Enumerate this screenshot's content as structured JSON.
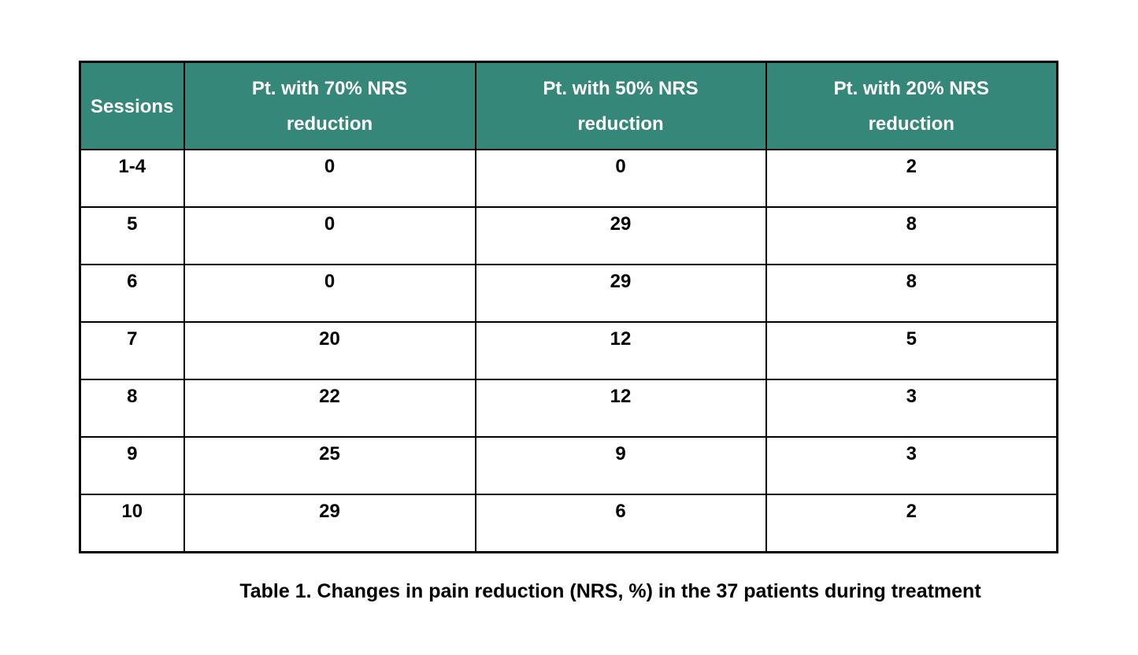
{
  "table": {
    "header": {
      "bg_color": "#348779",
      "text_color": "#ffffff",
      "border_color": "#000000",
      "columns": [
        {
          "label": "Sessions"
        },
        {
          "label": "Pt. with 70% NRS reduction"
        },
        {
          "label": "Pt. with 50% NRS reduction"
        },
        {
          "label": "Pt. with 20% NRS reduction"
        }
      ]
    },
    "rows": [
      {
        "cells": [
          "1-4",
          "0",
          "0",
          "2"
        ]
      },
      {
        "cells": [
          "5",
          "0",
          "29",
          "8"
        ]
      },
      {
        "cells": [
          "6",
          "0",
          "29",
          "8"
        ]
      },
      {
        "cells": [
          "7",
          "20",
          "12",
          "5"
        ]
      },
      {
        "cells": [
          "8",
          "22",
          "12",
          "3"
        ]
      },
      {
        "cells": [
          "9",
          "25",
          "9",
          "3"
        ]
      },
      {
        "cells": [
          "10",
          "29",
          "6",
          "2"
        ]
      }
    ]
  },
  "caption": {
    "text": "Table 1. Changes in pain reduction (NRS, %) in the 37 patients during treatment"
  }
}
